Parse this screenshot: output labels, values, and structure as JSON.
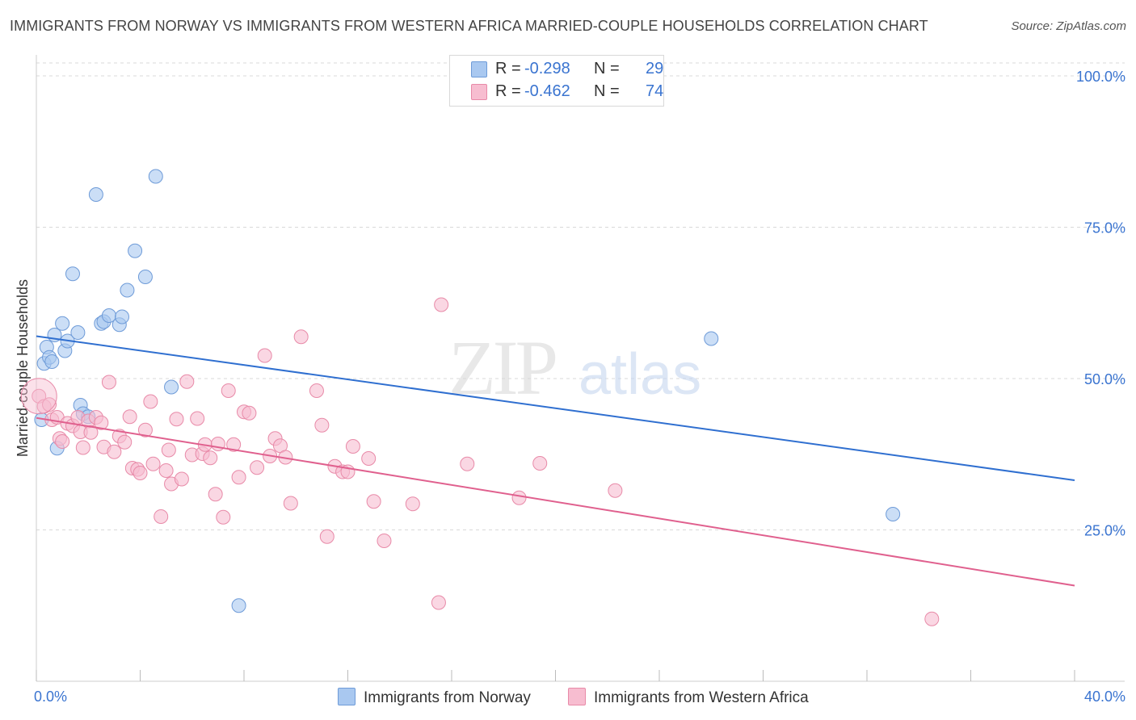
{
  "title": "IMMIGRANTS FROM NORWAY VS IMMIGRANTS FROM WESTERN AFRICA MARRIED-COUPLE HOUSEHOLDS CORRELATION CHART",
  "source": "Source: ZipAtlas.com",
  "watermark": {
    "zip": "ZIP",
    "atlas": "atlas"
  },
  "legend": {
    "r_label": "R =",
    "n_label": "N =",
    "entries": [
      {
        "r": "-0.298",
        "n": "29"
      },
      {
        "r": "-0.462",
        "n": "74"
      }
    ]
  },
  "colors": {
    "norway_fill": "#a9c8f0",
    "norway_stroke": "#6e9bd8",
    "norway_line": "#2f6fd0",
    "wafrica_fill": "#f7bdd0",
    "wafrica_stroke": "#e88aa8",
    "wafrica_line": "#e0608e",
    "axis_label": "#3a74d0",
    "grid": "#d9d9d9"
  },
  "chart_data": {
    "type": "scatter",
    "title": "IMMIGRANTS FROM NORWAY VS IMMIGRANTS FROM WESTERN AFRICA MARRIED-COUPLE HOUSEHOLDS CORRELATION CHART",
    "xlabel": "",
    "ylabel": "Married-couple Households",
    "xlim": [
      0,
      40
    ],
    "ylim": [
      0,
      102
    ],
    "x_tick_labels": [
      "0.0%",
      "40.0%"
    ],
    "y_tick_values": [
      25,
      50,
      75,
      100
    ],
    "y_tick_labels": [
      "25.0%",
      "50.0%",
      "75.0%",
      "100.0%"
    ],
    "grid": true,
    "legend_position": "top-center",
    "series": [
      {
        "name": "Immigrants from Norway",
        "r": -0.298,
        "n": 29,
        "trend": {
          "x": [
            0,
            40
          ],
          "y": [
            57.0,
            33.2
          ]
        },
        "points": [
          [
            0.2,
            43.2
          ],
          [
            0.3,
            52.5
          ],
          [
            0.4,
            55.2
          ],
          [
            0.5,
            53.5
          ],
          [
            0.6,
            52.8
          ],
          [
            0.7,
            57.2
          ],
          [
            0.8,
            38.5
          ],
          [
            1.0,
            59.1
          ],
          [
            1.1,
            54.6
          ],
          [
            1.2,
            56.2
          ],
          [
            1.4,
            67.3
          ],
          [
            1.6,
            57.6
          ],
          [
            1.7,
            45.6
          ],
          [
            1.8,
            44.2
          ],
          [
            2.0,
            43.7
          ],
          [
            2.3,
            80.4
          ],
          [
            2.5,
            59.1
          ],
          [
            2.6,
            59.4
          ],
          [
            2.8,
            60.4
          ],
          [
            3.2,
            58.9
          ],
          [
            3.3,
            60.2
          ],
          [
            3.5,
            64.6
          ],
          [
            3.8,
            71.1
          ],
          [
            4.2,
            66.8
          ],
          [
            4.6,
            83.4
          ],
          [
            5.2,
            48.6
          ],
          [
            7.8,
            12.5
          ],
          [
            26.0,
            56.6
          ],
          [
            33.0,
            27.6
          ]
        ]
      },
      {
        "name": "Immigrants from Western Africa",
        "r": -0.462,
        "n": 74,
        "trend": {
          "x": [
            0,
            40
          ],
          "y": [
            43.5,
            15.8
          ]
        },
        "points": [
          [
            0.1,
            47.1
          ],
          [
            0.3,
            45.4
          ],
          [
            0.5,
            45.7
          ],
          [
            0.6,
            43.2
          ],
          [
            0.8,
            43.6
          ],
          [
            0.9,
            40.1
          ],
          [
            1.0,
            39.6
          ],
          [
            1.2,
            42.6
          ],
          [
            1.4,
            42.2
          ],
          [
            1.6,
            43.6
          ],
          [
            1.7,
            41.2
          ],
          [
            1.8,
            38.6
          ],
          [
            2.0,
            43.0
          ],
          [
            2.1,
            41.1
          ],
          [
            2.3,
            43.6
          ],
          [
            2.5,
            42.7
          ],
          [
            2.6,
            38.7
          ],
          [
            2.8,
            49.4
          ],
          [
            3.0,
            37.9
          ],
          [
            3.2,
            40.5
          ],
          [
            3.4,
            39.5
          ],
          [
            3.6,
            43.7
          ],
          [
            3.7,
            35.2
          ],
          [
            3.9,
            35.0
          ],
          [
            4.0,
            34.4
          ],
          [
            4.2,
            41.5
          ],
          [
            4.4,
            46.2
          ],
          [
            4.5,
            35.9
          ],
          [
            4.8,
            27.2
          ],
          [
            5.0,
            34.8
          ],
          [
            5.1,
            38.2
          ],
          [
            5.2,
            32.6
          ],
          [
            5.4,
            43.3
          ],
          [
            5.6,
            33.4
          ],
          [
            5.8,
            49.5
          ],
          [
            6.0,
            37.4
          ],
          [
            6.2,
            43.4
          ],
          [
            6.4,
            37.6
          ],
          [
            6.5,
            39.1
          ],
          [
            6.7,
            36.9
          ],
          [
            6.9,
            30.9
          ],
          [
            7.0,
            39.2
          ],
          [
            7.2,
            27.1
          ],
          [
            7.4,
            48.0
          ],
          [
            7.6,
            39.1
          ],
          [
            7.8,
            33.7
          ],
          [
            8.0,
            44.5
          ],
          [
            8.2,
            44.3
          ],
          [
            8.5,
            35.3
          ],
          [
            8.8,
            53.8
          ],
          [
            9.0,
            37.2
          ],
          [
            9.2,
            40.1
          ],
          [
            9.4,
            38.9
          ],
          [
            9.6,
            37.0
          ],
          [
            9.8,
            29.4
          ],
          [
            10.2,
            56.9
          ],
          [
            10.8,
            48.0
          ],
          [
            11.0,
            42.3
          ],
          [
            11.2,
            23.9
          ],
          [
            11.5,
            35.5
          ],
          [
            11.8,
            34.6
          ],
          [
            12.0,
            34.6
          ],
          [
            12.2,
            38.8
          ],
          [
            12.8,
            36.8
          ],
          [
            13.0,
            29.7
          ],
          [
            13.4,
            23.2
          ],
          [
            14.5,
            29.3
          ],
          [
            15.5,
            13.0
          ],
          [
            15.6,
            62.2
          ],
          [
            16.6,
            35.9
          ],
          [
            18.6,
            30.3
          ],
          [
            19.4,
            36.0
          ],
          [
            22.3,
            31.5
          ],
          [
            34.5,
            10.3
          ]
        ]
      }
    ]
  },
  "bottom_legend": {
    "items": [
      "Immigrants from Norway",
      "Immigrants from Western Africa"
    ]
  }
}
